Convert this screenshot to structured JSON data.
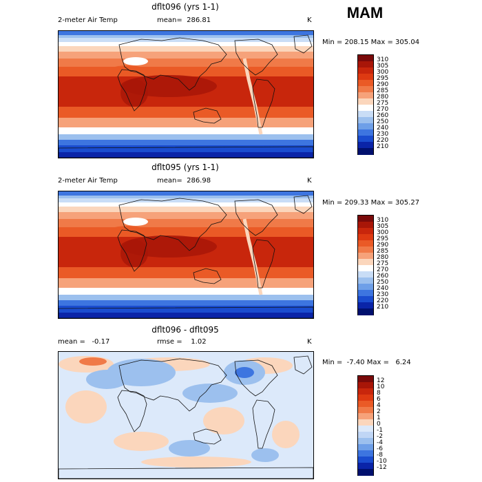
{
  "season": "MAM",
  "panels": [
    {
      "title": "dflt096 (yrs 1-1)",
      "variable": "2-meter Air Temp",
      "stat1": "mean=  286.81",
      "stat2": "",
      "unit": "K",
      "minmax": "Min = 208.15 Max = 305.04",
      "levels": [
        "310",
        "305",
        "300",
        "295",
        "290",
        "285",
        "280",
        "275",
        "270",
        "260",
        "250",
        "240",
        "230",
        "220",
        "210"
      ],
      "colors": [
        "#7a0a0a",
        "#a81608",
        "#c8260c",
        "#de3a12",
        "#ea5a26",
        "#f07a48",
        "#f6a27a",
        "#fbd6bc",
        "#ffffff",
        "#c9ddf6",
        "#9cc0ee",
        "#6e9fe8",
        "#3d75e0",
        "#1a4ccf",
        "#0a24a8",
        "#00106e"
      ],
      "map_type": "temperature"
    },
    {
      "title": "dflt095 (yrs 1-1)",
      "variable": "2-meter Air Temp",
      "stat1": "mean=  286.98",
      "stat2": "",
      "unit": "K",
      "minmax": "Min = 209.33 Max = 305.27",
      "levels": [
        "310",
        "305",
        "300",
        "295",
        "290",
        "285",
        "280",
        "275",
        "270",
        "260",
        "250",
        "240",
        "230",
        "220",
        "210"
      ],
      "colors": [
        "#7a0a0a",
        "#a81608",
        "#c8260c",
        "#de3a12",
        "#ea5a26",
        "#f07a48",
        "#f6a27a",
        "#fbd6bc",
        "#ffffff",
        "#c9ddf6",
        "#9cc0ee",
        "#6e9fe8",
        "#3d75e0",
        "#1a4ccf",
        "#0a24a8",
        "#00106e"
      ],
      "map_type": "temperature"
    },
    {
      "title": "dflt096 - dflt095",
      "variable": "",
      "stat1": "mean =   -0.17",
      "stat2": "rmse =    1.02",
      "unit": "K",
      "minmax": "Min =  -7.40 Max =   6.24",
      "levels": [
        "12",
        "10",
        "8",
        "6",
        "4",
        "2",
        "1",
        "0",
        "-1",
        "-2",
        "-4",
        "-6",
        "-8",
        "-10",
        "-12"
      ],
      "colors": [
        "#7a0a0a",
        "#a81608",
        "#c8260c",
        "#de3a12",
        "#ea5a26",
        "#f07a48",
        "#f6a27a",
        "#fbd6bc",
        "#dce9fa",
        "#c0d6f5",
        "#9cc0ee",
        "#6e9fe8",
        "#3d75e0",
        "#1a4ccf",
        "#0a24a8",
        "#00106e"
      ],
      "map_type": "difference"
    }
  ]
}
